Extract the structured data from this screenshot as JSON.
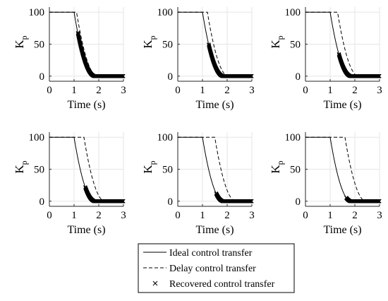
{
  "chart_data": [
    {
      "type": "line",
      "xlabel": "Time (s)",
      "ylabel": "K",
      "ylabel_sub": "p",
      "xlim": [
        0,
        3
      ],
      "ylim": [
        -8,
        108
      ],
      "xticks": [
        "0",
        "1",
        "2",
        "3"
      ],
      "yticks": [
        "0",
        "50",
        "100"
      ],
      "grid": true,
      "delay_s": 0.1
    },
    {
      "type": "line",
      "xlabel": "Time (s)",
      "ylabel": "K",
      "ylabel_sub": "p",
      "xlim": [
        0,
        3
      ],
      "ylim": [
        -8,
        108
      ],
      "xticks": [
        "0",
        "1",
        "2",
        "3"
      ],
      "yticks": [
        "0",
        "50",
        "100"
      ],
      "grid": true,
      "delay_s": 0.2
    },
    {
      "type": "line",
      "xlabel": "Time (s)",
      "ylabel": "K",
      "ylabel_sub": "p",
      "xlim": [
        0,
        3
      ],
      "ylim": [
        -8,
        108
      ],
      "xticks": [
        "0",
        "1",
        "2",
        "3"
      ],
      "yticks": [
        "0",
        "50",
        "100"
      ],
      "grid": true,
      "delay_s": 0.3
    },
    {
      "type": "line",
      "xlabel": "Time (s)",
      "ylabel": "K",
      "ylabel_sub": "p",
      "xlim": [
        0,
        3
      ],
      "ylim": [
        -8,
        108
      ],
      "xticks": [
        "0",
        "1",
        "2",
        "3"
      ],
      "yticks": [
        "0",
        "50",
        "100"
      ],
      "grid": true,
      "delay_s": 0.4
    },
    {
      "type": "line",
      "xlabel": "Time (s)",
      "ylabel": "K",
      "ylabel_sub": "p",
      "xlim": [
        0,
        3
      ],
      "ylim": [
        -8,
        108
      ],
      "xticks": [
        "0",
        "1",
        "2",
        "3"
      ],
      "yticks": [
        "0",
        "50",
        "100"
      ],
      "grid": true,
      "delay_s": 0.5
    },
    {
      "type": "line",
      "xlabel": "Time (s)",
      "ylabel": "K",
      "ylabel_sub": "p",
      "xlim": [
        0,
        3
      ],
      "ylim": [
        -8,
        108
      ],
      "xticks": [
        "0",
        "1",
        "2",
        "3"
      ],
      "yticks": [
        "0",
        "50",
        "100"
      ],
      "grid": true,
      "delay_s": 0.6
    }
  ],
  "series_model": {
    "ideal": {
      "initial": 100,
      "final": 0,
      "t_start": 1.0,
      "t_end": 1.85,
      "shape": "quadratic"
    },
    "recovered_start_offset": 0.05
  },
  "legend": {
    "placement": "bottom-center",
    "entries": [
      {
        "style": "solid",
        "label": "Ideal control transfer"
      },
      {
        "style": "dashed",
        "label": "Delay control transfer"
      },
      {
        "style": "x-marker",
        "label": "Recovered control transfer"
      }
    ]
  }
}
